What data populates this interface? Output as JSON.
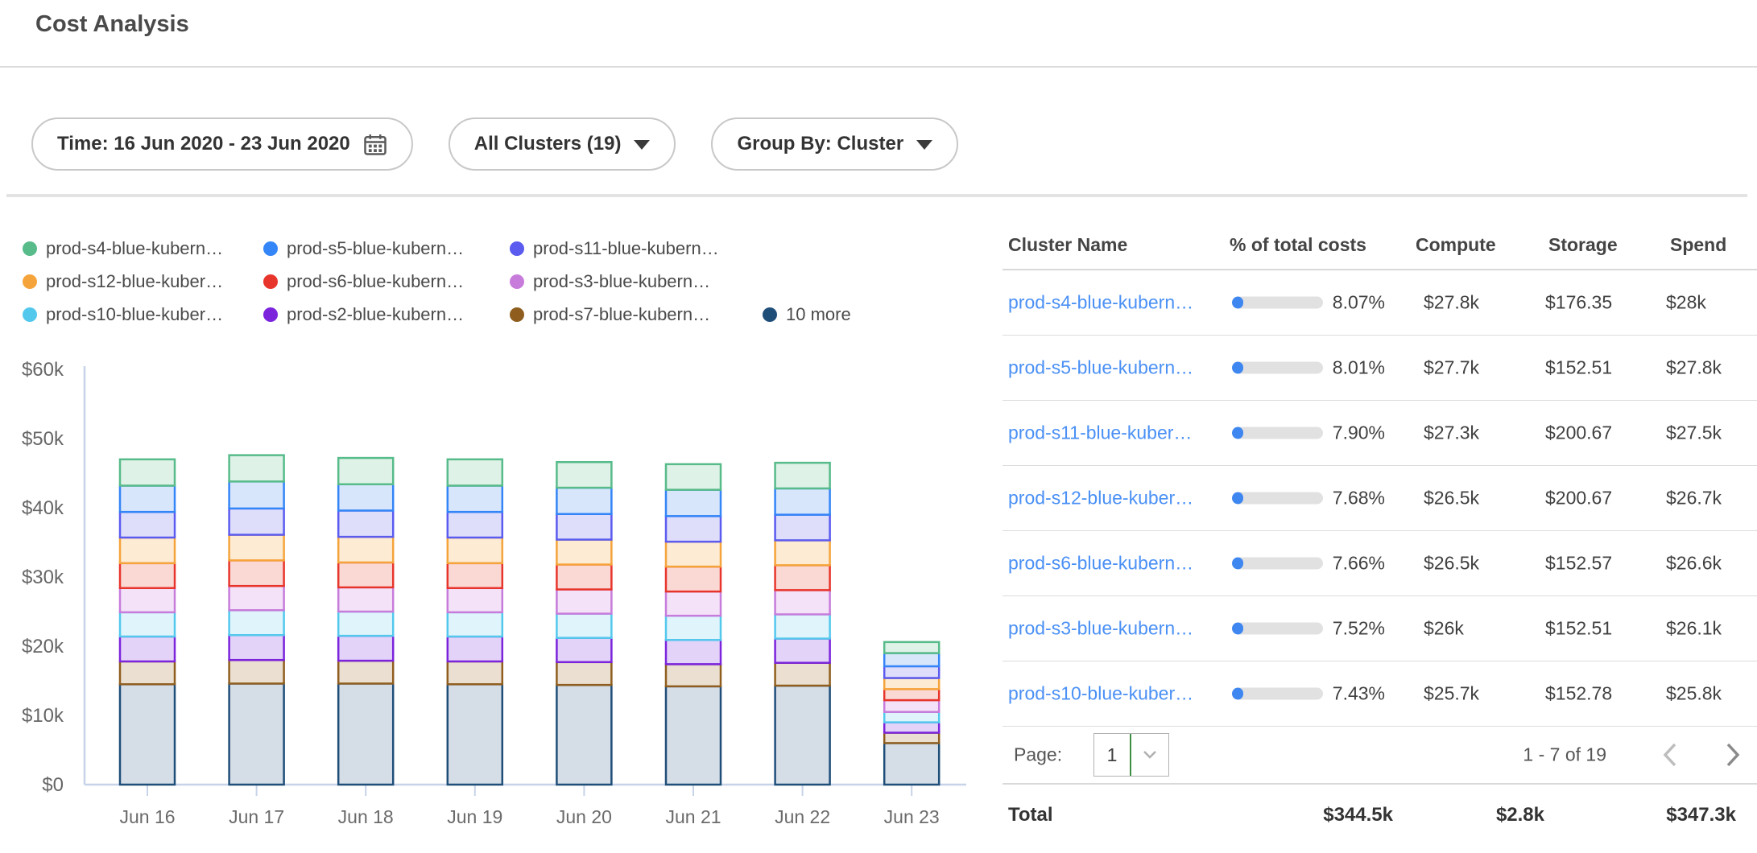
{
  "title": "Cost Analysis",
  "filters": {
    "time_label": "Time: 16 Jun 2020 - 23 Jun 2020",
    "clusters_label": "All Clusters (19)",
    "group_by_label": "Group By: Cluster"
  },
  "colors": {
    "link_blue": "#4a90f5",
    "progress_fill": "#3e86f0",
    "progress_track": "#e1e1e1",
    "axis": "#c7d3e8",
    "axis_text": "#666666",
    "divider": "#dcdcdc"
  },
  "legend": {
    "rows": [
      [
        {
          "label": "prod-s4-blue-kubern…",
          "color": "#57BB8A"
        },
        {
          "label": "prod-s5-blue-kubern…",
          "color": "#3485F7"
        },
        {
          "label": "prod-s11-blue-kubern…",
          "color": "#5B5BF0"
        }
      ],
      [
        {
          "label": "prod-s12-blue-kuber…",
          "color": "#F5A43B"
        },
        {
          "label": "prod-s6-blue-kubern…",
          "color": "#E8352C"
        },
        {
          "label": "prod-s3-blue-kubern…",
          "color": "#C77CDB"
        }
      ],
      [
        {
          "label": "prod-s10-blue-kuber…",
          "color": "#53C8ED"
        },
        {
          "label": "prod-s2-blue-kubern…",
          "color": "#7B24DC"
        },
        {
          "label": "prod-s7-blue-kubern…",
          "color": "#8F5E1F"
        },
        {
          "label": "10 more",
          "color": "#1F4E79"
        }
      ]
    ]
  },
  "chart_data": {
    "type": "bar",
    "stacked": true,
    "title": "",
    "xlabel": "",
    "ylabel": "",
    "unit": "USD thousands",
    "ylim": [
      0,
      60000
    ],
    "y_ticks": [
      "$0",
      "$10k",
      "$20k",
      "$30k",
      "$40k",
      "$50k",
      "$60k"
    ],
    "categories": [
      "Jun 16",
      "Jun 17",
      "Jun 18",
      "Jun 19",
      "Jun 20",
      "Jun 21",
      "Jun 22",
      "Jun 23"
    ],
    "series_note": "bottom-to-top stack order; values in $k",
    "series": [
      {
        "name": "10 more",
        "color": "#1F4E79",
        "fill": "#D5DDE7",
        "values_k": [
          14.5,
          14.6,
          14.6,
          14.5,
          14.4,
          14.2,
          14.3,
          6.0
        ]
      },
      {
        "name": "prod-s7",
        "color": "#8F5E1F",
        "fill": "#EADFD0",
        "values_k": [
          3.3,
          3.4,
          3.3,
          3.3,
          3.3,
          3.2,
          3.3,
          1.5
        ]
      },
      {
        "name": "prod-s2",
        "color": "#7B24DC",
        "fill": "#E4D3F8",
        "values_k": [
          3.6,
          3.6,
          3.6,
          3.6,
          3.5,
          3.5,
          3.5,
          1.5
        ]
      },
      {
        "name": "prod-s10",
        "color": "#53C8ED",
        "fill": "#E0F4FC",
        "values_k": [
          3.5,
          3.6,
          3.5,
          3.5,
          3.5,
          3.5,
          3.5,
          1.5
        ]
      },
      {
        "name": "prod-s3",
        "color": "#C77CDB",
        "fill": "#F4E3F8",
        "values_k": [
          3.5,
          3.5,
          3.5,
          3.5,
          3.5,
          3.5,
          3.5,
          1.7
        ]
      },
      {
        "name": "prod-s6",
        "color": "#E8352C",
        "fill": "#FAD9D5",
        "values_k": [
          3.6,
          3.7,
          3.6,
          3.6,
          3.6,
          3.6,
          3.6,
          1.6
        ]
      },
      {
        "name": "prod-s12",
        "color": "#F5A43B",
        "fill": "#FDEBD3",
        "values_k": [
          3.7,
          3.7,
          3.7,
          3.7,
          3.6,
          3.6,
          3.6,
          1.6
        ]
      },
      {
        "name": "prod-s11",
        "color": "#5B5BF0",
        "fill": "#DEDEFB",
        "values_k": [
          3.7,
          3.8,
          3.8,
          3.7,
          3.7,
          3.7,
          3.7,
          1.7
        ]
      },
      {
        "name": "prod-s5",
        "color": "#3485F7",
        "fill": "#D8E6FC",
        "values_k": [
          3.8,
          3.9,
          3.8,
          3.8,
          3.8,
          3.8,
          3.8,
          1.9
        ]
      },
      {
        "name": "prod-s4",
        "color": "#57BB8A",
        "fill": "#DFF2E7",
        "values_k": [
          3.8,
          3.8,
          3.8,
          3.8,
          3.7,
          3.7,
          3.7,
          1.6
        ]
      }
    ]
  },
  "table": {
    "columns": [
      "Cluster Name",
      "% of total costs",
      "Compute",
      "Storage",
      "Spend"
    ],
    "rows": [
      {
        "name": "prod-s4-blue-kubern…",
        "pct": "8.07%",
        "pct_value": 8.07,
        "compute": "$27.8k",
        "storage": "$176.35",
        "spend": "$28k"
      },
      {
        "name": "prod-s5-blue-kubern…",
        "pct": "8.01%",
        "pct_value": 8.01,
        "compute": "$27.7k",
        "storage": "$152.51",
        "spend": "$27.8k"
      },
      {
        "name": "prod-s11-blue-kuber…",
        "pct": "7.90%",
        "pct_value": 7.9,
        "compute": "$27.3k",
        "storage": "$200.67",
        "spend": "$27.5k"
      },
      {
        "name": "prod-s12-blue-kuber…",
        "pct": "7.68%",
        "pct_value": 7.68,
        "compute": "$26.5k",
        "storage": "$200.67",
        "spend": "$26.7k"
      },
      {
        "name": "prod-s6-blue-kubern…",
        "pct": "7.66%",
        "pct_value": 7.66,
        "compute": "$26.5k",
        "storage": "$152.57",
        "spend": "$26.6k"
      },
      {
        "name": "prod-s3-blue-kubern…",
        "pct": "7.52%",
        "pct_value": 7.52,
        "compute": "$26k",
        "storage": "$152.51",
        "spend": "$26.1k"
      },
      {
        "name": "prod-s10-blue-kuber…",
        "pct": "7.43%",
        "pct_value": 7.43,
        "compute": "$25.7k",
        "storage": "$152.78",
        "spend": "$25.8k"
      }
    ],
    "pagination": {
      "page_label": "Page:",
      "page": "1",
      "range": "1 - 7 of 19"
    },
    "total": {
      "label": "Total",
      "compute": "$344.5k",
      "storage": "$2.8k",
      "spend": "$347.3k"
    }
  }
}
